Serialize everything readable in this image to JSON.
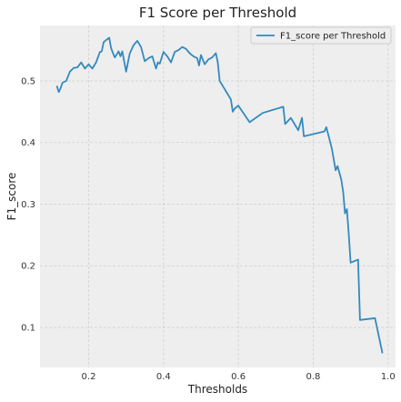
{
  "chart_data": {
    "type": "line",
    "title": "F1 Score per Threshold",
    "xlabel": "Thresholds",
    "ylabel": "F1_score",
    "xlim": [
      0.07,
      1.02
    ],
    "ylim": [
      0.035,
      0.59
    ],
    "xticks": [
      0.2,
      0.4,
      0.6,
      0.8,
      1.0
    ],
    "xtick_labels": [
      "0.2",
      "0.4",
      "0.6",
      "0.8",
      "1.0"
    ],
    "yticks": [
      0.1,
      0.2,
      0.3,
      0.4,
      0.5
    ],
    "ytick_labels": [
      "0.1",
      "0.2",
      "0.3",
      "0.4",
      "0.5"
    ],
    "grid": true,
    "legend_position": "top-right",
    "colors": {
      "background": "#eeeeee",
      "grid": "#d0d0d0",
      "line": "#348abd"
    },
    "series": [
      {
        "name": "F1_score per Threshold",
        "x": [
          0.115,
          0.12,
          0.125,
          0.13,
          0.14,
          0.15,
          0.16,
          0.17,
          0.18,
          0.19,
          0.2,
          0.21,
          0.22,
          0.23,
          0.235,
          0.24,
          0.25,
          0.255,
          0.26,
          0.265,
          0.27,
          0.28,
          0.285,
          0.29,
          0.3,
          0.305,
          0.31,
          0.32,
          0.33,
          0.34,
          0.35,
          0.36,
          0.37,
          0.38,
          0.385,
          0.39,
          0.4,
          0.41,
          0.42,
          0.43,
          0.44,
          0.45,
          0.46,
          0.47,
          0.48,
          0.49,
          0.495,
          0.5,
          0.51,
          0.52,
          0.53,
          0.54,
          0.545,
          0.55,
          0.56,
          0.57,
          0.58,
          0.585,
          0.59,
          0.6,
          0.63,
          0.665,
          0.72,
          0.725,
          0.74,
          0.76,
          0.77,
          0.775,
          0.83,
          0.835,
          0.85,
          0.86,
          0.865,
          0.875,
          0.88,
          0.885,
          0.89,
          0.895,
          0.9,
          0.92,
          0.925,
          0.965,
          0.985
        ],
        "y": [
          0.492,
          0.482,
          0.488,
          0.497,
          0.5,
          0.515,
          0.521,
          0.522,
          0.53,
          0.52,
          0.527,
          0.52,
          0.53,
          0.547,
          0.548,
          0.563,
          0.568,
          0.57,
          0.553,
          0.545,
          0.538,
          0.548,
          0.54,
          0.548,
          0.515,
          0.53,
          0.545,
          0.558,
          0.565,
          0.555,
          0.532,
          0.537,
          0.54,
          0.52,
          0.53,
          0.528,
          0.547,
          0.54,
          0.53,
          0.547,
          0.55,
          0.555,
          0.552,
          0.545,
          0.54,
          0.537,
          0.525,
          0.542,
          0.527,
          0.535,
          0.538,
          0.545,
          0.53,
          0.5,
          0.49,
          0.48,
          0.47,
          0.45,
          0.455,
          0.46,
          0.433,
          0.448,
          0.458,
          0.43,
          0.44,
          0.42,
          0.44,
          0.41,
          0.418,
          0.425,
          0.39,
          0.355,
          0.362,
          0.34,
          0.32,
          0.285,
          0.292,
          0.25,
          0.205,
          0.21,
          0.112,
          0.115,
          0.058
        ]
      }
    ]
  }
}
